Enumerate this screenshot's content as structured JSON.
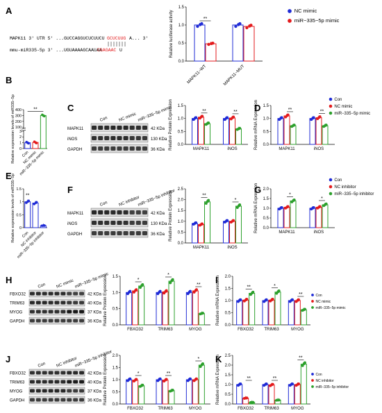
{
  "panel_labels": [
    "A",
    "B",
    "C",
    "D",
    "E",
    "F",
    "G",
    "H",
    "I",
    "J",
    "K"
  ],
  "colors": {
    "nc": "#1f2bd6",
    "mimic": "#e31a1c",
    "inhib": "#2ca02c"
  },
  "panelA": {
    "seq_top": "MAPK11 3' UTR 5' ...GUCCAGGUCUCUUCU",
    "seq_top_site": "GCUCUUG",
    "seq_top_end": "A... 3'",
    "seq_bottom": "mmu-miR335-5p  3' ...UGUAAAAGCAAUAA",
    "seq_bottom_site": "CGAGAAC",
    "seq_bottom_end": "U"
  },
  "legendA": [
    "NC mimic",
    "miR−335−5p mimic"
  ],
  "legend_mimic": [
    "Con",
    "NC mimic",
    "miR−335−5p mimic"
  ],
  "legend_inhib": [
    "Con",
    "NC inhibitor",
    "miR−335−5p inhibitor"
  ],
  "blots": {
    "C": {
      "lanes": [
        "Con",
        "NC mimic",
        "miR−335−5p mimic"
      ],
      "bands": [
        "MAPK11",
        "iNOS",
        "GAPDH"
      ],
      "kda": [
        "42 KDa",
        "130 KDa",
        "36 KDa"
      ]
    },
    "F": {
      "lanes": [
        "Con",
        "NC inhibitor",
        "miR−335−5p inhibitor"
      ],
      "bands": [
        "MAPK11",
        "iNOS",
        "GAPDH"
      ],
      "kda": [
        "42 KDa",
        "130 KDa",
        "36 KDa"
      ]
    },
    "H": {
      "lanes": [
        "Con",
        "NC mimic",
        "miR−335−5p mimic"
      ],
      "bands": [
        "FBXO32",
        "TRIM63",
        "MYOG",
        "GAPDH"
      ],
      "kda": [
        "42 KDa",
        "40 KDa",
        "37 KDa",
        "36 KDa"
      ]
    },
    "J": {
      "lanes": [
        "Con",
        "NC inhibitor",
        "miR−335−5p inhibitor"
      ],
      "bands": [
        "FBXO32",
        "TRIM63",
        "MYOG",
        "GAPDH"
      ],
      "kda": [
        "42 KDa",
        "40 KDa",
        "37 KDa",
        "36 KDa"
      ]
    }
  },
  "chart_data": [
    {
      "id": "A",
      "type": "bar",
      "ylabel": "Relative luciferase activity",
      "ylim": [
        0,
        1.5
      ],
      "yticks": [
        0,
        0.5,
        1.0,
        1.5
      ],
      "categories": [
        "MAPK11−WT",
        "MAPK11−MUT"
      ],
      "series": [
        {
          "name": "NC mimic",
          "values": [
            1.0,
            1.0
          ]
        },
        {
          "name": "miR−335−5p mimic",
          "values": [
            0.48,
            0.96
          ]
        }
      ],
      "annotations": [
        "**",
        ""
      ]
    },
    {
      "id": "B",
      "type": "bar",
      "ylabel": "Relative expression levels of miR335−5p",
      "yticks": [
        0,
        1,
        2,
        3,
        100,
        200,
        300,
        400
      ],
      "categories": [
        "Con",
        "NC mimic",
        "miR−335−5p mimic"
      ],
      "values": [
        1.0,
        1.05,
        300
      ],
      "annotations": [
        "**"
      ]
    },
    {
      "id": "C",
      "type": "bar",
      "ylabel": "Relative  Protein Expression",
      "ylim": [
        0,
        1.5
      ],
      "yticks": [
        0,
        0.5,
        1.0,
        1.5
      ],
      "categories": [
        "MAPK11",
        "iNOS"
      ],
      "series": [
        {
          "name": "Con",
          "values": [
            1.0,
            1.0
          ]
        },
        {
          "name": "NC mimic",
          "values": [
            1.05,
            1.02
          ]
        },
        {
          "name": "miR−335−5p mimic",
          "values": [
            0.8,
            0.6
          ]
        }
      ],
      "annotations": [
        "**",
        "**"
      ]
    },
    {
      "id": "D",
      "type": "bar",
      "ylabel": "Relative  mRNA Expression",
      "ylim": [
        0,
        1.5
      ],
      "yticks": [
        0,
        0.5,
        1.0,
        1.5
      ],
      "categories": [
        "MAPK11",
        "iNOS"
      ],
      "series": [
        {
          "name": "Con",
          "values": [
            1.0,
            1.0
          ]
        },
        {
          "name": "NC mimic",
          "values": [
            1.1,
            1.03
          ]
        },
        {
          "name": "miR−335−5p mimic",
          "values": [
            0.72,
            0.72
          ]
        }
      ],
      "annotations": [
        "**",
        "**"
      ]
    },
    {
      "id": "E",
      "type": "bar",
      "ylabel": "Relative expression levels of miR335−5p",
      "ylim": [
        0,
        1.5
      ],
      "yticks": [
        0,
        0.5,
        1.0,
        1.5
      ],
      "categories": [
        "Con",
        "NC inhibitor",
        "miR−335−5p inhibitor"
      ],
      "values": [
        1.0,
        0.95,
        0.08
      ],
      "annotations": [
        "**"
      ]
    },
    {
      "id": "F",
      "type": "bar",
      "ylabel": "Relative  Protein Expression",
      "ylim": [
        0,
        2.5
      ],
      "yticks": [
        0,
        0.5,
        1.0,
        1.5,
        2.0,
        2.5
      ],
      "categories": [
        "MAPK11",
        "iNOS"
      ],
      "series": [
        {
          "name": "Con",
          "values": [
            0.9,
            1.0
          ]
        },
        {
          "name": "NC inhibitor",
          "values": [
            0.85,
            1.0
          ]
        },
        {
          "name": "miR−335−5p inhibitor",
          "values": [
            1.9,
            1.7
          ]
        }
      ],
      "annotations": [
        "**",
        "*"
      ]
    },
    {
      "id": "G",
      "type": "bar",
      "ylabel": "Relative  mRNA Expression",
      "ylim": [
        0,
        2.0
      ],
      "yticks": [
        0,
        0.5,
        1.0,
        1.5,
        2.0
      ],
      "categories": [
        "MAPK11",
        "iNOS"
      ],
      "series": [
        {
          "name": "Con",
          "values": [
            1.0,
            1.0
          ]
        },
        {
          "name": "NC inhibitor",
          "values": [
            1.05,
            1.05
          ]
        },
        {
          "name": "miR−335−5p inhibitor",
          "values": [
            1.38,
            1.18
          ]
        }
      ],
      "annotations": [
        "*",
        "*"
      ]
    },
    {
      "id": "H",
      "type": "bar",
      "ylabel": "Relative Protein Expression",
      "ylim": [
        0,
        1.5
      ],
      "yticks": [
        0,
        0.5,
        1.0,
        1.5
      ],
      "categories": [
        "FBXO32",
        "TRIM63",
        "MYOG"
      ],
      "series": [
        {
          "name": "Con",
          "values": [
            1.0,
            1.0,
            1.0
          ]
        },
        {
          "name": "NC mimic",
          "values": [
            1.05,
            1.02,
            1.05
          ]
        },
        {
          "name": "miR−335−5p mimic",
          "values": [
            1.2,
            1.35,
            0.35
          ]
        }
      ],
      "annotations": [
        "*",
        "*",
        "**"
      ]
    },
    {
      "id": "I",
      "type": "bar",
      "ylabel": "Relative mRNA Expression",
      "ylim": [
        0,
        2.0
      ],
      "yticks": [
        0,
        0.5,
        1.0,
        1.5,
        2.0
      ],
      "categories": [
        "FBXO32",
        "TRIM63",
        "MYOG"
      ],
      "series": [
        {
          "name": "Con",
          "values": [
            1.0,
            1.0,
            1.0
          ]
        },
        {
          "name": "NC mimic",
          "values": [
            1.02,
            1.02,
            1.0
          ]
        },
        {
          "name": "miR−335−5p mimic",
          "values": [
            1.3,
            1.35,
            0.62
          ]
        }
      ],
      "annotations": [
        "**",
        "*",
        "**"
      ]
    },
    {
      "id": "J",
      "type": "bar",
      "ylabel": "Relative Protein Expression",
      "ylim": [
        0,
        2.0
      ],
      "yticks": [
        0,
        0.5,
        1.0,
        1.5,
        2.0
      ],
      "categories": [
        "FBXO32",
        "TRIM63",
        "MYOG"
      ],
      "series": [
        {
          "name": "Con",
          "values": [
            1.0,
            1.0,
            1.0
          ]
        },
        {
          "name": "NC inhibitor",
          "values": [
            0.98,
            0.98,
            1.0
          ]
        },
        {
          "name": "miR−335−5p inhibitor",
          "values": [
            0.75,
            0.55,
            1.6
          ]
        }
      ],
      "annotations": [
        "*",
        "**",
        "*"
      ]
    },
    {
      "id": "K",
      "type": "bar",
      "ylabel": "Relative mRNA Expression",
      "ylim": [
        0,
        2.5
      ],
      "yticks": [
        0,
        0.5,
        1.0,
        1.5,
        2.0,
        2.5
      ],
      "categories": [
        "FBXO32",
        "TRIM63",
        "MYOG"
      ],
      "series": [
        {
          "name": "Con",
          "values": [
            1.0,
            1.0,
            1.0
          ]
        },
        {
          "name": "NC inhibitor",
          "values": [
            0.3,
            0.98,
            1.0
          ]
        },
        {
          "name": "miR−335−5p inhibitor",
          "values": [
            0.08,
            0.2,
            2.05
          ]
        }
      ],
      "annotations": [
        "**",
        "**",
        "**"
      ]
    }
  ]
}
